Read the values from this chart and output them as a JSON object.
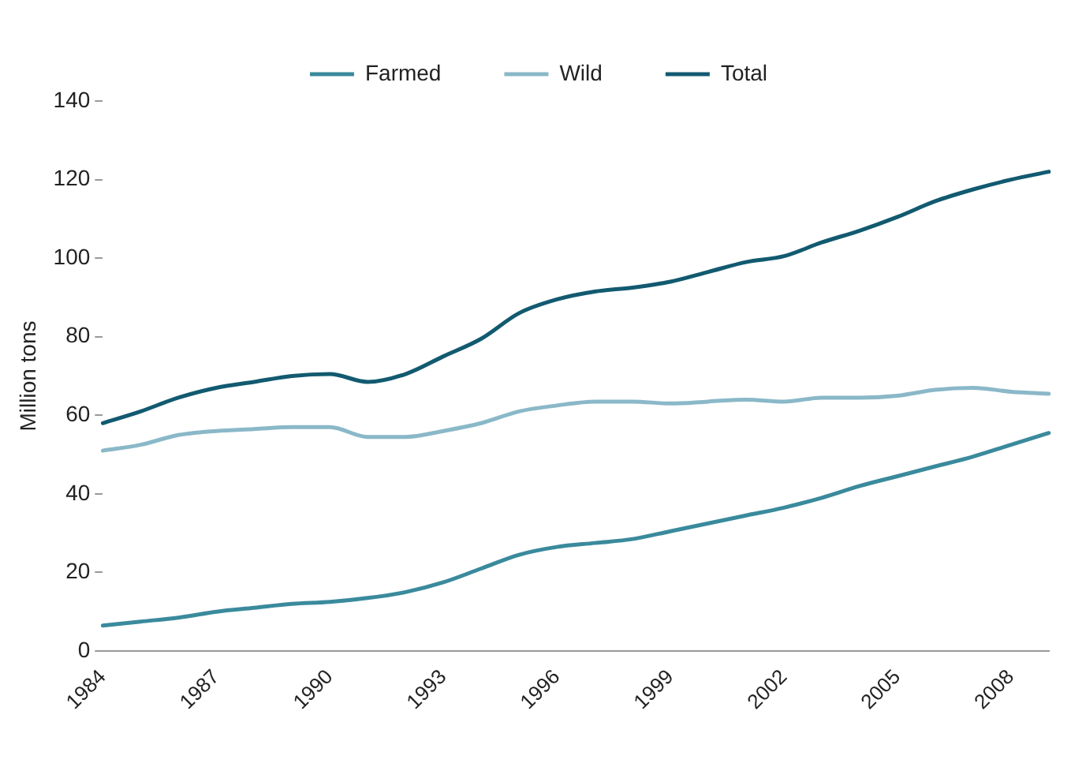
{
  "chart_data": {
    "type": "line",
    "ylabel": "Million tons",
    "categories": [
      "1984",
      null,
      null,
      "1987",
      null,
      null,
      "1990",
      null,
      null,
      "1993",
      null,
      null,
      "1996",
      null,
      null,
      "1999",
      null,
      null,
      "2002",
      null,
      null,
      "2005",
      null,
      null,
      "2008",
      null
    ],
    "series": [
      {
        "name": "Farmed",
        "color": "#3a8a9c",
        "values": [
          6.5,
          7.5,
          8.5,
          10,
          11,
          12,
          12.5,
          13.5,
          15,
          17.5,
          21,
          24.5,
          26.5,
          27.5,
          28.5,
          30.5,
          32.5,
          34.5,
          36.5,
          39,
          42,
          44.5,
          47,
          49.5,
          52.5,
          55.5
        ]
      },
      {
        "name": "Wild",
        "color": "#8ab8c8",
        "values": [
          51,
          52.5,
          55,
          56,
          56.5,
          57,
          57,
          54.5,
          54.5,
          56,
          58,
          61,
          62.5,
          63.5,
          63.5,
          63,
          63.5,
          64,
          63.5,
          64.5,
          64.5,
          65,
          66.5,
          67,
          66,
          65.5
        ]
      },
      {
        "name": "Total",
        "color": "#125a70",
        "values": [
          58,
          61,
          64.5,
          67,
          68.5,
          70,
          70.5,
          68.5,
          70.5,
          75,
          79.5,
          86,
          89.5,
          91.5,
          92.5,
          94,
          96.5,
          99,
          100.5,
          104,
          107,
          110.5,
          114.5,
          117.5,
          120,
          122
        ]
      }
    ],
    "ylim": [
      0,
      140
    ],
    "yticks": [
      0,
      20,
      40,
      60,
      80,
      100,
      120,
      140
    ],
    "grid": false,
    "legend": "top",
    "marker": "none",
    "line_style": "solid"
  }
}
